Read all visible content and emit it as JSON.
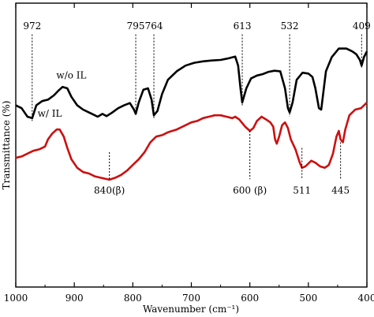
{
  "chart_data": {
    "type": "line",
    "xlabel": "Wavenumber (cm⁻¹)",
    "ylabel": "Transmittance (%)",
    "xlim": [
      1000,
      400
    ],
    "x_ticks": [
      1000,
      900,
      800,
      700,
      600,
      500,
      400
    ],
    "x_tick_labels": [
      "1000",
      "900",
      "800",
      "700",
      "600",
      "500",
      "400"
    ],
    "y_ticks_labeled": false,
    "grid": false,
    "series": [
      {
        "name": "w/o IL",
        "color": "#000000",
        "points": [
          [
            1000,
            0.64
          ],
          [
            990,
            0.63
          ],
          [
            980,
            0.6
          ],
          [
            972,
            0.595
          ],
          [
            965,
            0.64
          ],
          [
            955,
            0.655
          ],
          [
            945,
            0.66
          ],
          [
            935,
            0.675
          ],
          [
            928,
            0.69
          ],
          [
            920,
            0.705
          ],
          [
            912,
            0.7
          ],
          [
            905,
            0.67
          ],
          [
            895,
            0.64
          ],
          [
            885,
            0.625
          ],
          [
            875,
            0.615
          ],
          [
            868,
            0.608
          ],
          [
            860,
            0.6
          ],
          [
            852,
            0.61
          ],
          [
            845,
            0.602
          ],
          [
            835,
            0.615
          ],
          [
            825,
            0.63
          ],
          [
            815,
            0.64
          ],
          [
            805,
            0.648
          ],
          [
            798,
            0.625
          ],
          [
            795,
            0.61
          ],
          [
            790,
            0.65
          ],
          [
            782,
            0.695
          ],
          [
            774,
            0.7
          ],
          [
            768,
            0.66
          ],
          [
            764,
            0.605
          ],
          [
            758,
            0.62
          ],
          [
            750,
            0.68
          ],
          [
            740,
            0.73
          ],
          [
            725,
            0.76
          ],
          [
            710,
            0.78
          ],
          [
            695,
            0.79
          ],
          [
            680,
            0.795
          ],
          [
            665,
            0.798
          ],
          [
            650,
            0.8
          ],
          [
            638,
            0.805
          ],
          [
            625,
            0.812
          ],
          [
            620,
            0.78
          ],
          [
            616,
            0.7
          ],
          [
            613,
            0.65
          ],
          [
            606,
            0.7
          ],
          [
            598,
            0.735
          ],
          [
            588,
            0.745
          ],
          [
            578,
            0.75
          ],
          [
            568,
            0.758
          ],
          [
            558,
            0.762
          ],
          [
            548,
            0.76
          ],
          [
            540,
            0.7
          ],
          [
            535,
            0.63
          ],
          [
            532,
            0.615
          ],
          [
            527,
            0.65
          ],
          [
            520,
            0.73
          ],
          [
            510,
            0.755
          ],
          [
            500,
            0.752
          ],
          [
            493,
            0.74
          ],
          [
            488,
            0.7
          ],
          [
            482,
            0.63
          ],
          [
            478,
            0.625
          ],
          [
            470,
            0.76
          ],
          [
            460,
            0.81
          ],
          [
            448,
            0.84
          ],
          [
            435,
            0.84
          ],
          [
            425,
            0.83
          ],
          [
            418,
            0.82
          ],
          [
            412,
            0.8
          ],
          [
            409,
            0.78
          ],
          [
            405,
            0.81
          ],
          [
            400,
            0.83
          ]
        ]
      },
      {
        "name": "w/ IL",
        "color": "#cc1010",
        "points": [
          [
            1000,
            0.455
          ],
          [
            990,
            0.46
          ],
          [
            980,
            0.47
          ],
          [
            970,
            0.48
          ],
          [
            960,
            0.485
          ],
          [
            950,
            0.495
          ],
          [
            945,
            0.52
          ],
          [
            938,
            0.54
          ],
          [
            930,
            0.555
          ],
          [
            925,
            0.555
          ],
          [
            918,
            0.53
          ],
          [
            912,
            0.49
          ],
          [
            905,
            0.45
          ],
          [
            895,
            0.42
          ],
          [
            885,
            0.405
          ],
          [
            875,
            0.4
          ],
          [
            865,
            0.39
          ],
          [
            855,
            0.385
          ],
          [
            840,
            0.378
          ],
          [
            830,
            0.385
          ],
          [
            820,
            0.395
          ],
          [
            810,
            0.41
          ],
          [
            800,
            0.43
          ],
          [
            790,
            0.45
          ],
          [
            780,
            0.475
          ],
          [
            770,
            0.51
          ],
          [
            760,
            0.53
          ],
          [
            750,
            0.535
          ],
          [
            740,
            0.545
          ],
          [
            725,
            0.555
          ],
          [
            710,
            0.57
          ],
          [
            700,
            0.58
          ],
          [
            690,
            0.585
          ],
          [
            680,
            0.595
          ],
          [
            670,
            0.6
          ],
          [
            660,
            0.605
          ],
          [
            650,
            0.605
          ],
          [
            640,
            0.6
          ],
          [
            630,
            0.595
          ],
          [
            625,
            0.6
          ],
          [
            618,
            0.59
          ],
          [
            608,
            0.565
          ],
          [
            600,
            0.55
          ],
          [
            594,
            0.56
          ],
          [
            588,
            0.585
          ],
          [
            580,
            0.6
          ],
          [
            572,
            0.59
          ],
          [
            565,
            0.58
          ],
          [
            560,
            0.565
          ],
          [
            557,
            0.52
          ],
          [
            554,
            0.505
          ],
          [
            550,
            0.53
          ],
          [
            545,
            0.57
          ],
          [
            540,
            0.58
          ],
          [
            535,
            0.56
          ],
          [
            530,
            0.52
          ],
          [
            522,
            0.485
          ],
          [
            515,
            0.44
          ],
          [
            511,
            0.42
          ],
          [
            505,
            0.425
          ],
          [
            495,
            0.445
          ],
          [
            488,
            0.438
          ],
          [
            480,
            0.425
          ],
          [
            472,
            0.42
          ],
          [
            465,
            0.43
          ],
          [
            458,
            0.47
          ],
          [
            452,
            0.53
          ],
          [
            448,
            0.55
          ],
          [
            445,
            0.52
          ],
          [
            441,
            0.51
          ],
          [
            437,
            0.555
          ],
          [
            430,
            0.605
          ],
          [
            420,
            0.625
          ],
          [
            410,
            0.63
          ],
          [
            400,
            0.65
          ]
        ]
      }
    ],
    "series_labels": [
      {
        "text": "w/o IL",
        "x": 905,
        "y": 0.735
      },
      {
        "text": "w/ IL",
        "x": 942,
        "y": 0.6
      }
    ],
    "annotations": [
      {
        "text": "972",
        "x": 972,
        "label_y": 0.92,
        "line_from": 0.89,
        "line_to": 0.585
      },
      {
        "text": "795",
        "x": 795,
        "label_y": 0.92,
        "line_from": 0.89,
        "line_to": 0.605
      },
      {
        "text": "764",
        "x": 764,
        "label_y": 0.92,
        "line_from": 0.89,
        "line_to": 0.59
      },
      {
        "text": "613",
        "x": 613,
        "label_y": 0.92,
        "line_from": 0.89,
        "line_to": 0.64
      },
      {
        "text": "532",
        "x": 532,
        "label_y": 0.92,
        "line_from": 0.89,
        "line_to": 0.6
      },
      {
        "text": "409",
        "x": 409,
        "label_y": 0.92,
        "line_from": 0.89,
        "line_to": 0.77
      },
      {
        "text": "840(β)",
        "x": 840,
        "label_y": 0.34,
        "line_from": 0.475,
        "line_to": 0.38
      },
      {
        "text": "600 (β)",
        "x": 600,
        "label_y": 0.34,
        "line_from": 0.55,
        "line_to": 0.38
      },
      {
        "text": "511",
        "x": 511,
        "label_y": 0.34,
        "line_from": 0.49,
        "line_to": 0.38
      },
      {
        "text": "445",
        "x": 445,
        "label_y": 0.34,
        "line_from": 0.51,
        "line_to": 0.38
      }
    ]
  }
}
